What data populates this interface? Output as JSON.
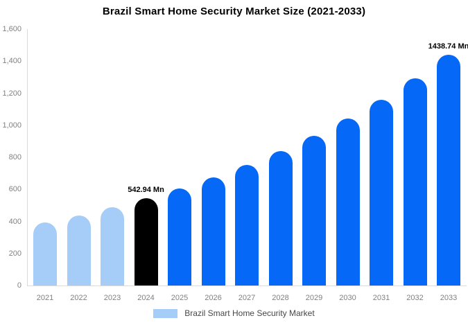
{
  "chart_data": {
    "type": "bar",
    "title": "Brazil Smart Home Security Market Size (2021-2033)",
    "unit": "Mn",
    "categories": [
      "2021",
      "2022",
      "2023",
      "2024",
      "2025",
      "2026",
      "2027",
      "2028",
      "2029",
      "2030",
      "2031",
      "2032",
      "2033"
    ],
    "values": [
      392.31,
      437.2,
      487.22,
      542.94,
      605.06,
      674.29,
      751.44,
      837.42,
      933.23,
      1040.01,
      1159.01,
      1291.62,
      1438.74
    ],
    "bar_colors": [
      "#a5cdf8",
      "#a5cdf8",
      "#a5cdf8",
      "#000000",
      "#0568f6",
      "#0568f6",
      "#0568f6",
      "#0568f6",
      "#0568f6",
      "#0568f6",
      "#0568f6",
      "#0568f6",
      "#0568f6"
    ],
    "annotations": [
      {
        "year": "2024",
        "label": "542.94 Mn"
      },
      {
        "year": "2033",
        "label": "1438.74 Mn"
      }
    ],
    "yticks": [
      {
        "value": 0,
        "label": "0"
      },
      {
        "value": 200,
        "label": "200"
      },
      {
        "value": 400,
        "label": "400"
      },
      {
        "value": 600,
        "label": "600"
      },
      {
        "value": 800,
        "label": "800"
      },
      {
        "value": 1000,
        "label": "1,000"
      },
      {
        "value": 1200,
        "label": "1,200"
      },
      {
        "value": 1400,
        "label": "1,400"
      },
      {
        "value": 1600,
        "label": "1,600"
      }
    ],
    "ylim": [
      0,
      1600
    ],
    "grid": false,
    "xlabel": "",
    "ylabel": "",
    "legend": {
      "label": "Brazil Smart Home Security Market",
      "swatch_color": "#a5cdf8",
      "position": "bottom"
    },
    "colors": {
      "historical_light_blue": "#a5cdf8",
      "base_year_black": "#000000",
      "forecast_blue": "#0568f6",
      "axis_line": "#d9d9d9",
      "axis_text": "#808080",
      "title_text": "#000000"
    }
  }
}
